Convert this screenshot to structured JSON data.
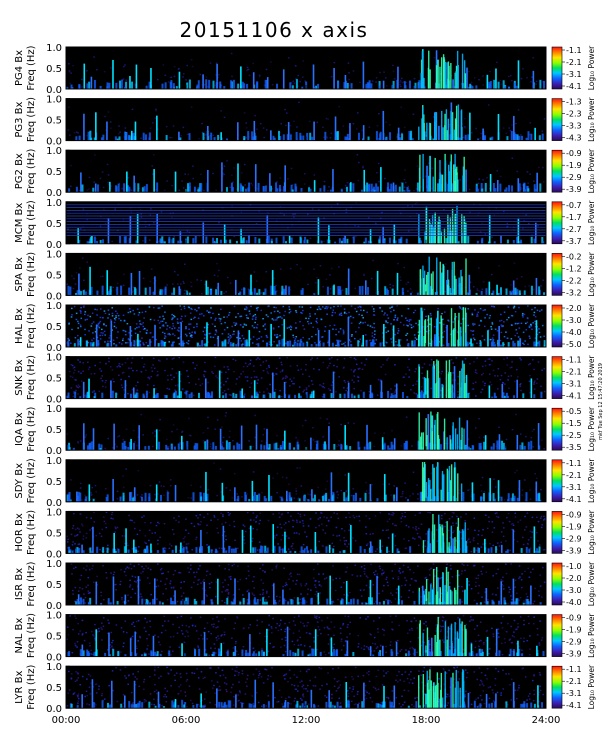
{
  "title": "20151106 x axis",
  "side_note": "mkf Tue Sep 12 15:47:20 2019",
  "colors": {
    "background": "#000000",
    "frame": "#000000"
  },
  "chart_data": {
    "type": "heatmap",
    "title": "20151106 x axis",
    "x_tick_labels": [
      "00:00",
      "06:00",
      "12:00",
      "18:00",
      "24:00"
    ],
    "x_ticks_hours": [
      0,
      6,
      12,
      18,
      24
    ],
    "xlim_hours": [
      0,
      24
    ],
    "ylim": [
      0.0,
      1.0
    ],
    "y_tick_labels": [
      "0.0",
      "0.5",
      "1.0"
    ],
    "y_ticks": [
      0.0,
      0.5,
      1.0
    ],
    "colorbar_label": "Log₁₀ Power",
    "panels": [
      {
        "station": "PG4",
        "ylabel_line1": "PG4  Bx",
        "ylabel_line2": "Freq (Hz)",
        "colorbar_ticks": [
          "-1.1",
          "-2.1",
          "-3.1",
          "-4.1"
        ],
        "colorbar_range": [
          -4.1,
          -1.1
        ],
        "noise": "low"
      },
      {
        "station": "PG3",
        "ylabel_line1": "PG3  Bx",
        "ylabel_line2": "Freq (Hz)",
        "colorbar_ticks": [
          "-1.3",
          "-2.3",
          "-3.3",
          "-4.3"
        ],
        "colorbar_range": [
          -4.3,
          -1.3
        ],
        "noise": "low"
      },
      {
        "station": "PG2",
        "ylabel_line1": "PG2  Bx",
        "ylabel_line2": "Freq (Hz)",
        "colorbar_ticks": [
          "-0.9",
          "-1.9",
          "-2.9",
          "-3.9"
        ],
        "colorbar_range": [
          -3.9,
          -0.9
        ],
        "noise": "low"
      },
      {
        "station": "MCM",
        "ylabel_line1": "MCM  Bx",
        "ylabel_line2": "Freq (Hz)",
        "colorbar_ticks": [
          "-0.7",
          "-1.7",
          "-2.7",
          "-3.7"
        ],
        "colorbar_range": [
          -3.7,
          -0.7
        ],
        "noise": "lines"
      },
      {
        "station": "SPA",
        "ylabel_line1": "SPA  Bx",
        "ylabel_line2": "Freq (Hz)",
        "colorbar_ticks": [
          "-0.2",
          "-1.2",
          "-2.2",
          "-3.2"
        ],
        "colorbar_range": [
          -3.2,
          -0.2
        ],
        "noise": "low"
      },
      {
        "station": "HAL",
        "ylabel_line1": "HAL  Bx",
        "ylabel_line2": "Freq (Hz)",
        "colorbar_ticks": [
          "-2.0",
          "-3.0",
          "-4.0",
          "-5.0"
        ],
        "colorbar_range": [
          -5.0,
          -2.0
        ],
        "noise": "high"
      },
      {
        "station": "SNK",
        "ylabel_line1": "SNK  Bx",
        "ylabel_line2": "Freq (Hz)",
        "colorbar_ticks": [
          "-1.1",
          "-2.1",
          "-3.1",
          "-4.1"
        ],
        "colorbar_range": [
          -4.1,
          -1.1
        ],
        "noise": "medium"
      },
      {
        "station": "IQA",
        "ylabel_line1": "IQA  Bx",
        "ylabel_line2": "Freq (Hz)",
        "colorbar_ticks": [
          "-0.5",
          "-1.5",
          "-2.5",
          "-3.5"
        ],
        "colorbar_range": [
          -3.5,
          -0.5
        ],
        "noise": "low"
      },
      {
        "station": "SDY",
        "ylabel_line1": "SDY  Bx",
        "ylabel_line2": "Freq (Hz)",
        "colorbar_ticks": [
          "-1.1",
          "-2.1",
          "-3.1",
          "-4.1"
        ],
        "colorbar_range": [
          -4.1,
          -1.1
        ],
        "noise": "low"
      },
      {
        "station": "HOR",
        "ylabel_line1": "HOR  Bx",
        "ylabel_line2": "Freq (Hz)",
        "colorbar_ticks": [
          "-0.9",
          "-1.9",
          "-2.9",
          "-3.9"
        ],
        "colorbar_range": [
          -3.9,
          -0.9
        ],
        "noise": "medium"
      },
      {
        "station": "ISR",
        "ylabel_line1": "ISR  Bx",
        "ylabel_line2": "Freq (Hz)",
        "colorbar_ticks": [
          "-1.0",
          "-2.0",
          "-3.0",
          "-4.0"
        ],
        "colorbar_range": [
          -4.0,
          -1.0
        ],
        "noise": "medium"
      },
      {
        "station": "NAL",
        "ylabel_line1": "NAL  Bx",
        "ylabel_line2": "Freq (Hz)",
        "colorbar_ticks": [
          "-0.9",
          "-1.9",
          "-2.9",
          "-3.9"
        ],
        "colorbar_range": [
          -3.9,
          -0.9
        ],
        "noise": "medium"
      },
      {
        "station": "LYR",
        "ylabel_line1": "LYR  Bx",
        "ylabel_line2": "Freq (Hz)",
        "colorbar_ticks": [
          "-1.1",
          "-2.1",
          "-3.1",
          "-4.1"
        ],
        "colorbar_range": [
          -4.1,
          -1.1
        ],
        "noise": "medium"
      }
    ]
  }
}
